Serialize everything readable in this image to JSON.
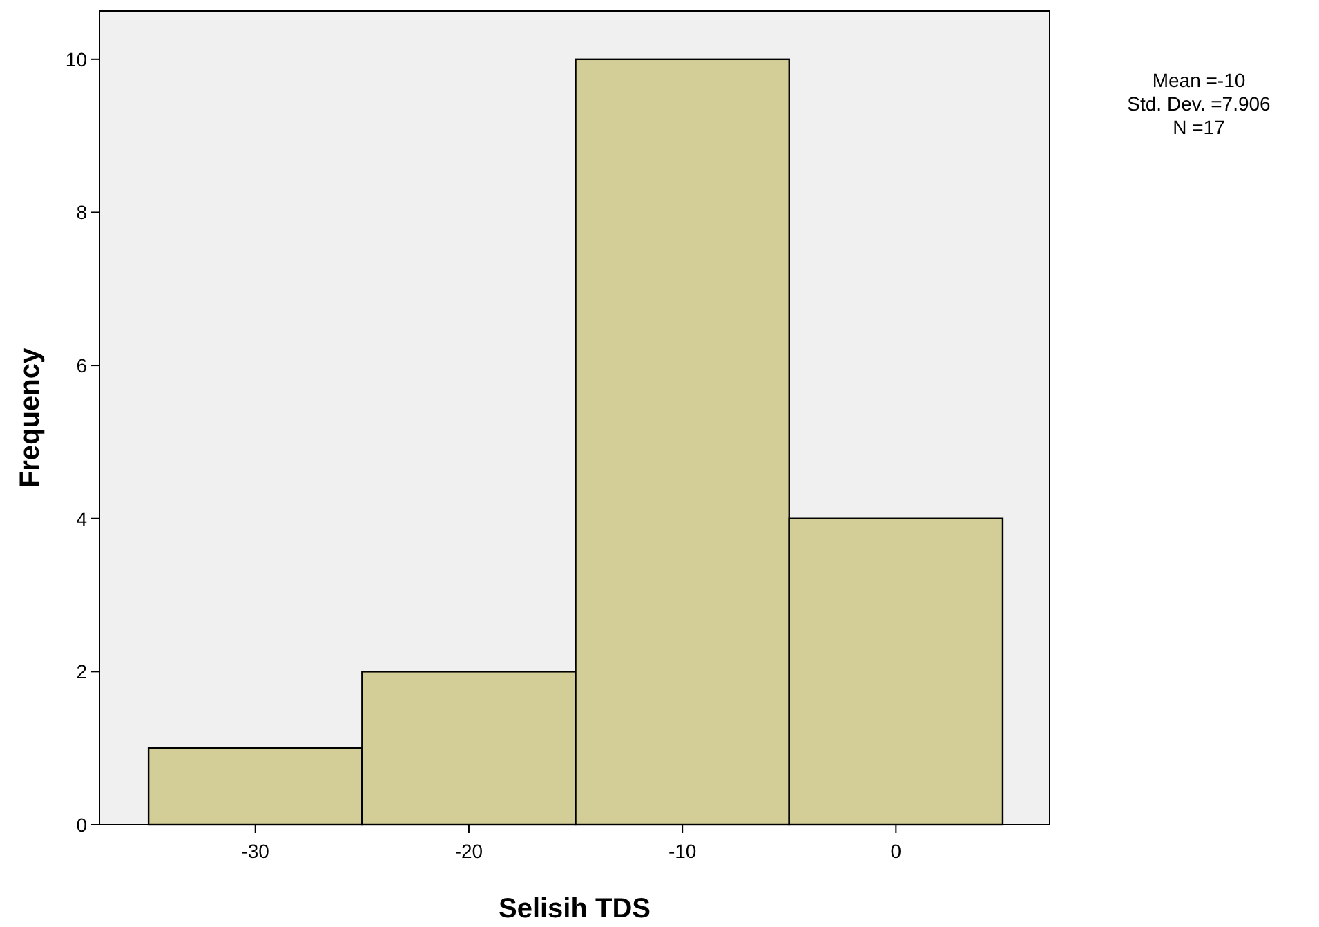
{
  "chart_data": {
    "type": "histogram",
    "xlabel": "Selisih TDS",
    "ylabel": "Frequency",
    "bins": [
      -35,
      -25,
      -15,
      -5,
      5
    ],
    "values": [
      1,
      2,
      10,
      4
    ],
    "color": "#d3ce98",
    "xlim": [
      -37.3,
      7.2
    ],
    "xticks": [
      -30,
      -20,
      -10,
      0
    ],
    "ylim": [
      0,
      10.63
    ],
    "yticks": [
      0,
      2,
      4,
      6,
      8,
      10
    ],
    "grid": false,
    "annotations": [
      "Mean =-10",
      "Std. Dev. =7.906",
      "N =17"
    ]
  }
}
